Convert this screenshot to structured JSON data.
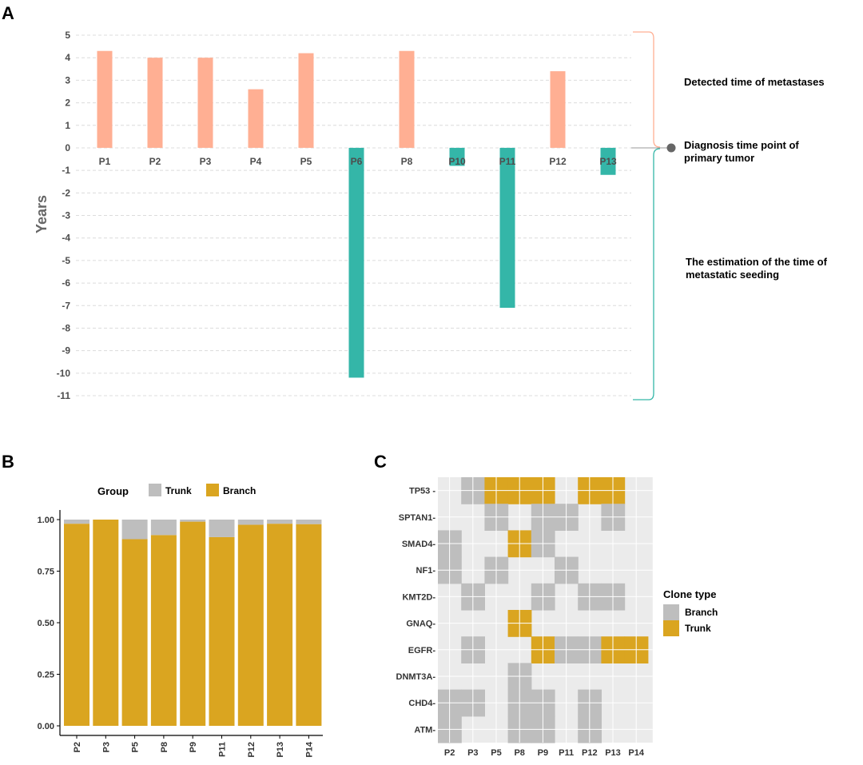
{
  "panels": {
    "a": "A",
    "b": "B",
    "c": "C"
  },
  "chart_data": [
    {
      "type": "bar",
      "panel": "A",
      "ylabel": "Years",
      "ylim": [
        -11,
        5
      ],
      "yticks": [
        5,
        4,
        3,
        2,
        1,
        0,
        -1,
        -2,
        -3,
        -4,
        -5,
        -6,
        -7,
        -8,
        -9,
        -10,
        -11
      ],
      "grid": true,
      "categories": [
        "P1",
        "P2",
        "P3",
        "P4",
        "P5",
        "P6",
        "P8",
        "P10",
        "P11",
        "P12",
        "P13"
      ],
      "values": [
        4.3,
        4.0,
        4.0,
        2.6,
        4.2,
        -10.2,
        4.3,
        -0.8,
        -7.1,
        3.4,
        -1.2
      ],
      "colors": {
        "positive": "#FFAF93",
        "negative": "#34B6A8",
        "marker": "#666666"
      },
      "annotations": {
        "upper": "Detected time of metastases",
        "middle": [
          "Diagnosis time point of",
          "primary tumor"
        ],
        "lower": [
          "The estimation of the time of",
          "metastatic seeding"
        ]
      }
    },
    {
      "type": "bar",
      "stacked": true,
      "panel": "B",
      "ylim": [
        0,
        1
      ],
      "yticks": [
        "0.00",
        "0.25",
        "0.50",
        "0.75",
        "1.00"
      ],
      "categories": [
        "P2",
        "P3",
        "P5",
        "P8",
        "P9",
        "P11",
        "P12",
        "P13",
        "P14"
      ],
      "legend": {
        "title": "Group",
        "items": [
          "Trunk",
          "Branch"
        ],
        "position": "top"
      },
      "series": [
        {
          "name": "Branch",
          "color": "#DAA520",
          "values": [
            0.98,
            1.0,
            0.905,
            0.925,
            0.99,
            0.915,
            0.975,
            0.98,
            0.978
          ]
        },
        {
          "name": "Trunk",
          "color": "#BEBEBE",
          "values": [
            0.02,
            0.0,
            0.095,
            0.075,
            0.01,
            0.085,
            0.025,
            0.02,
            0.022
          ]
        }
      ]
    },
    {
      "type": "heatmap",
      "panel": "C",
      "x": [
        "P2",
        "P3",
        "P5",
        "P8",
        "P9",
        "P11",
        "P12",
        "P13",
        "P14"
      ],
      "y": [
        "TP53",
        "SPTAN1",
        "SMAD4",
        "NF1",
        "KMT2D",
        "GNAQ",
        "EGFR",
        "DNMT3A",
        "CHD4",
        "ATM"
      ],
      "ylabels": [
        "TP53 -",
        "SPTAN1-",
        "SMAD4-",
        "NF1-",
        "KMT2D-",
        "GNAQ-",
        "EGFR-",
        "DNMT3A-",
        "CHD4-",
        "ATM-"
      ],
      "legend": {
        "title": "Clone type",
        "items": [
          "Branch",
          "Trunk"
        ],
        "position": "right"
      },
      "colors": {
        "Branch": "#BEBEBE",
        "Trunk": "#DAA520",
        "background": "#EBEBEB"
      },
      "cells": [
        [
          "",
          "Branch",
          "Trunk",
          "Trunk",
          "Trunk",
          "",
          "Trunk",
          "Trunk",
          ""
        ],
        [
          "",
          "",
          "Branch",
          "",
          "Branch",
          "Branch",
          "",
          "Branch",
          ""
        ],
        [
          "Branch",
          "",
          "",
          "Trunk",
          "Branch",
          "",
          "",
          "",
          ""
        ],
        [
          "Branch",
          "",
          "Branch",
          "",
          "",
          "Branch",
          "",
          "",
          ""
        ],
        [
          "",
          "Branch",
          "",
          "",
          "Branch",
          "",
          "Branch",
          "Branch",
          ""
        ],
        [
          "",
          "",
          "",
          "Trunk",
          "",
          "",
          "",
          "",
          ""
        ],
        [
          "",
          "Branch",
          "",
          "",
          "Trunk",
          "Branch",
          "Branch",
          "Trunk",
          "Trunk"
        ],
        [
          "",
          "",
          "",
          "Branch",
          "",
          "",
          "",
          "",
          ""
        ],
        [
          "Branch",
          "Branch",
          "",
          "Branch",
          "Branch",
          "",
          "Branch",
          "",
          ""
        ],
        [
          "Branch",
          "",
          "",
          "Branch",
          "Branch",
          "",
          "Branch",
          "",
          ""
        ]
      ]
    }
  ]
}
